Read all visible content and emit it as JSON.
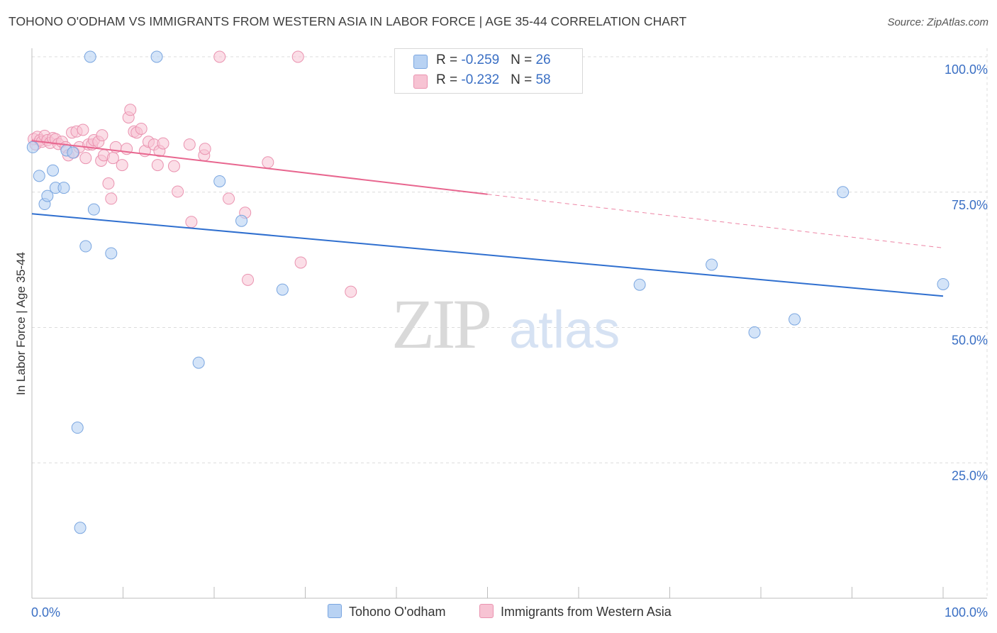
{
  "title": "TOHONO O'ODHAM VS IMMIGRANTS FROM WESTERN ASIA IN LABOR FORCE | AGE 35-44 CORRELATION CHART",
  "source": "Source: ZipAtlas.com",
  "watermark": {
    "zip": "ZIP",
    "atlas": "atlas"
  },
  "legend": {
    "rows": [
      {
        "r_label": "R = ",
        "r_value": "-0.259",
        "n_label": "N = ",
        "n_value": "26"
      },
      {
        "r_label": "R = ",
        "r_value": "-0.232",
        "n_label": "N = ",
        "n_value": "58"
      }
    ]
  },
  "colors": {
    "blue_fill": "#b8d2f3",
    "blue_stroke": "#7aa6e0",
    "blue_line": "#2f6fcf",
    "pink_fill": "#f7c3d3",
    "pink_stroke": "#ea93b0",
    "pink_line": "#e8668f",
    "tick_label": "#3a6fc4",
    "grid": "#dcdcdc"
  },
  "chart_data": {
    "type": "scatter",
    "title": "TOHONO O'ODHAM VS IMMIGRANTS FROM WESTERN ASIA IN LABOR FORCE | AGE 35-44 CORRELATION CHART",
    "xlabel": "",
    "ylabel": "In Labor Force | Age 35-44",
    "xlim": [
      0,
      100
    ],
    "ylim": [
      0,
      100
    ],
    "x_tick_labels": [
      "0.0%",
      "100.0%"
    ],
    "y_ticks": [
      25,
      50,
      75,
      100
    ],
    "y_tick_labels": [
      "25.0%",
      "50.0%",
      "75.0%",
      "100.0%"
    ],
    "grid": true,
    "legend_position": "top-center",
    "series": [
      {
        "name": "Tohono O'odham",
        "color": "blue",
        "r": -0.259,
        "n": 26,
        "points": [
          [
            0.1,
            83.3
          ],
          [
            0.8,
            78.0
          ],
          [
            1.4,
            72.8
          ],
          [
            1.7,
            74.3
          ],
          [
            2.3,
            79.0
          ],
          [
            2.6,
            75.8
          ],
          [
            3.5,
            75.8
          ],
          [
            3.8,
            82.7
          ],
          [
            4.5,
            82.3
          ],
          [
            5.0,
            31.5
          ],
          [
            5.3,
            13.0
          ],
          [
            5.9,
            65.0
          ],
          [
            6.4,
            100.0
          ],
          [
            6.8,
            71.8
          ],
          [
            8.7,
            63.7
          ],
          [
            13.7,
            100.0
          ],
          [
            18.3,
            43.5
          ],
          [
            20.6,
            77.0
          ],
          [
            23.0,
            69.7
          ],
          [
            27.5,
            57.0
          ],
          [
            66.7,
            57.9
          ],
          [
            74.6,
            61.6
          ],
          [
            79.3,
            49.1
          ],
          [
            83.7,
            51.5
          ],
          [
            89.0,
            75.0
          ],
          [
            100.0,
            58.0
          ]
        ],
        "trend": {
          "x": [
            0,
            100
          ],
          "y": [
            71.0,
            55.8
          ]
        }
      },
      {
        "name": "Immigrants from Western Asia",
        "color": "pink",
        "r": -0.232,
        "n": 58,
        "points": [
          [
            0.2,
            84.8
          ],
          [
            0.4,
            83.8
          ],
          [
            0.6,
            85.2
          ],
          [
            0.9,
            84.6
          ],
          [
            1.1,
            84.3
          ],
          [
            1.4,
            85.4
          ],
          [
            1.7,
            84.6
          ],
          [
            2.0,
            84.1
          ],
          [
            2.3,
            85.0
          ],
          [
            2.6,
            84.8
          ],
          [
            2.9,
            83.9
          ],
          [
            3.3,
            84.3
          ],
          [
            3.7,
            83.3
          ],
          [
            4.0,
            81.8
          ],
          [
            4.4,
            86.0
          ],
          [
            4.6,
            82.3
          ],
          [
            4.9,
            86.2
          ],
          [
            5.2,
            83.3
          ],
          [
            5.6,
            86.5
          ],
          [
            5.9,
            81.3
          ],
          [
            6.2,
            83.8
          ],
          [
            6.6,
            83.8
          ],
          [
            6.8,
            84.6
          ],
          [
            7.3,
            84.3
          ],
          [
            7.6,
            80.8
          ],
          [
            7.7,
            85.5
          ],
          [
            7.9,
            81.8
          ],
          [
            8.4,
            76.6
          ],
          [
            8.7,
            73.8
          ],
          [
            8.9,
            81.3
          ],
          [
            9.2,
            83.3
          ],
          [
            9.9,
            80.0
          ],
          [
            10.4,
            83.0
          ],
          [
            10.6,
            88.8
          ],
          [
            10.8,
            90.2
          ],
          [
            11.2,
            86.2
          ],
          [
            11.5,
            86.0
          ],
          [
            12.0,
            86.7
          ],
          [
            12.4,
            82.6
          ],
          [
            12.8,
            84.3
          ],
          [
            13.4,
            83.8
          ],
          [
            13.8,
            80.0
          ],
          [
            14.0,
            82.6
          ],
          [
            14.4,
            84.0
          ],
          [
            15.6,
            79.8
          ],
          [
            16.0,
            75.1
          ],
          [
            17.3,
            83.8
          ],
          [
            17.5,
            69.5
          ],
          [
            18.9,
            81.8
          ],
          [
            19.0,
            83.0
          ],
          [
            21.6,
            73.8
          ],
          [
            23.4,
            71.2
          ],
          [
            23.7,
            58.8
          ],
          [
            25.9,
            80.5
          ],
          [
            20.6,
            100.0
          ],
          [
            29.2,
            100.0
          ],
          [
            29.5,
            62.0
          ],
          [
            35.0,
            56.6
          ]
        ],
        "trend": {
          "x": [
            0,
            50
          ],
          "y": [
            84.5,
            74.6
          ]
        },
        "trend_extension": {
          "x": [
            50,
            100
          ],
          "y": [
            74.6,
            64.7
          ]
        }
      }
    ]
  }
}
